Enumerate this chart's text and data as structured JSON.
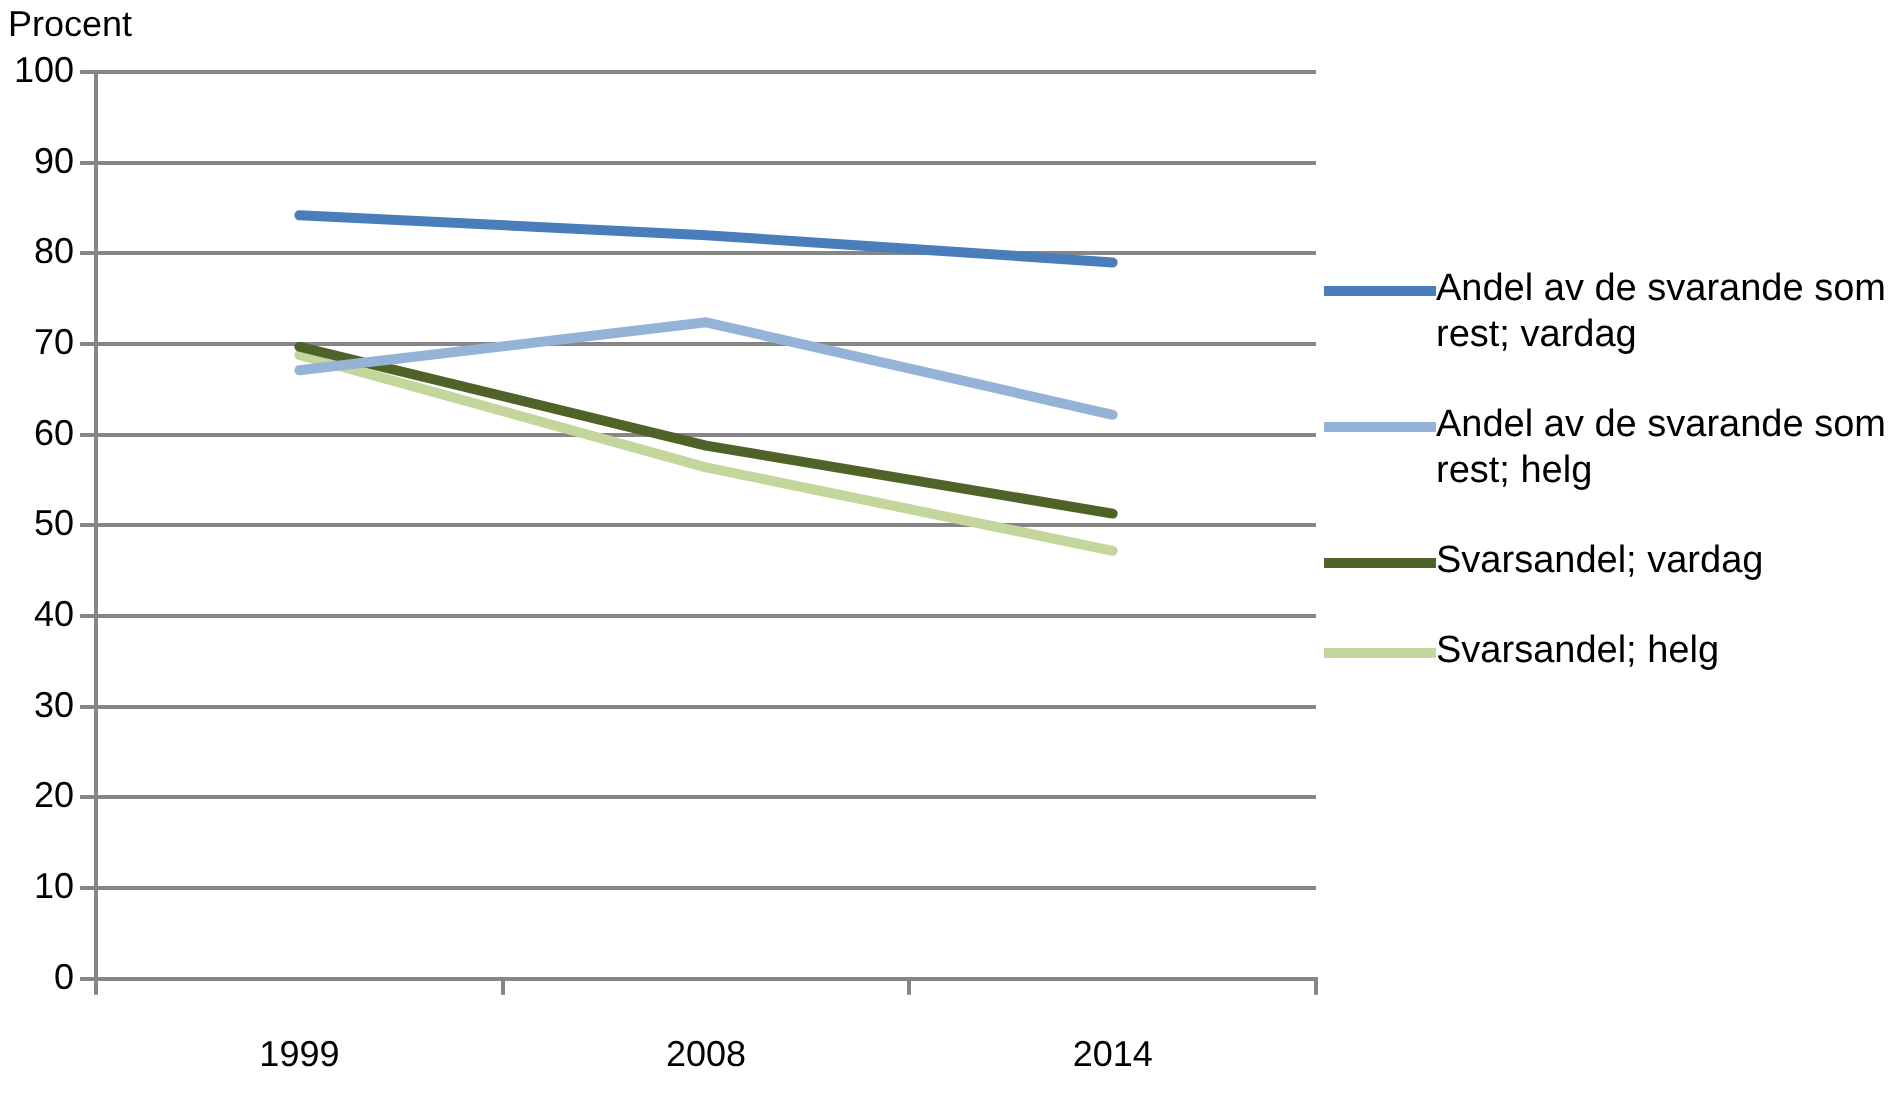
{
  "chart_data": {
    "type": "line",
    "ylabel": "Procent",
    "categories": [
      "1999",
      "2008",
      "2014"
    ],
    "series": [
      {
        "name": "Andel av de svarande som rest;  vardag",
        "color": "#4a7ebb",
        "values": [
          84.2,
          82,
          79
        ]
      },
      {
        "name": "Andel av de svarande som rest;  helg",
        "color": "#95b3d7",
        "values": [
          67.1,
          72.4,
          62.2
        ]
      },
      {
        "name": "Svarsandel;  vardag",
        "color": "#4f6228",
        "values": [
          69.7,
          58.8,
          51.3
        ]
      },
      {
        "name": "Svarsandel;  helg",
        "color": "#c3d69b",
        "values": [
          68.8,
          56.4,
          47.2
        ]
      }
    ],
    "ylim": [
      0,
      100
    ],
    "yticks": [
      0,
      10,
      20,
      30,
      40,
      50,
      60,
      70,
      80,
      90,
      100
    ],
    "grid": "y",
    "legend": "right",
    "marker": "none",
    "line_style": "solid"
  }
}
